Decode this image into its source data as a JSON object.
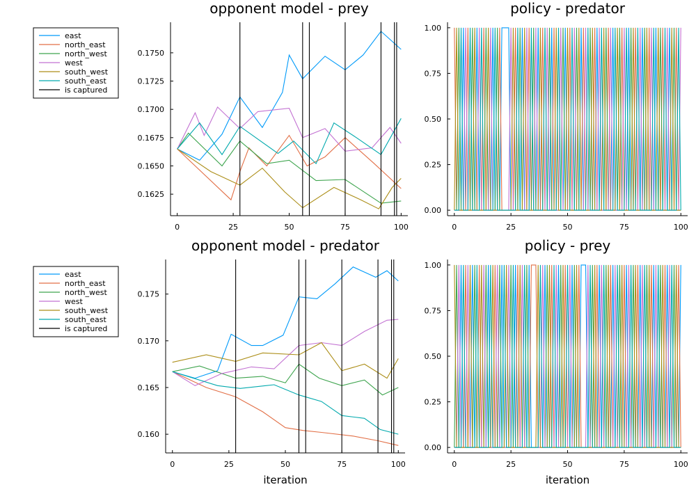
{
  "figure": {
    "captures_label": "is captured",
    "capture_iterations": [
      28,
      56,
      59,
      75,
      91,
      97,
      98
    ],
    "colors": {
      "east": "#009af9",
      "north_east": "#e26f46",
      "north_west": "#3da44d",
      "west": "#c271d2",
      "south_west": "#ac8e18",
      "south_east": "#00a9ad",
      "captured": "#000000"
    }
  },
  "chart_data": [
    {
      "id": "om_prey",
      "type": "line",
      "title": "opponent model - prey",
      "xlabel": "",
      "ylabel": "",
      "xlim": [
        -3,
        103
      ],
      "ylim": [
        0.1606,
        0.1777
      ],
      "x_ticks": [
        0,
        25,
        50,
        75,
        100
      ],
      "x_tick_labels": [
        "0",
        "25",
        "50",
        "75",
        "100"
      ],
      "y_ticks": [
        0.1625,
        0.165,
        0.1675,
        0.17,
        0.1725,
        0.175
      ],
      "y_tick_labels": [
        "0.1625",
        "0.1650",
        "0.1675",
        "0.1700",
        "0.1725",
        "0.1750"
      ],
      "legend": true,
      "legend_position": "outer-left",
      "series": [
        {
          "name": "east",
          "key": "east",
          "values": [
            [
              0,
              0.1665
            ],
            [
              10,
              0.1655
            ],
            [
              20,
              0.1678
            ],
            [
              28,
              0.1711
            ],
            [
              38,
              0.1684
            ],
            [
              47,
              0.1715
            ],
            [
              50,
              0.1748
            ],
            [
              56,
              0.1727
            ],
            [
              66,
              0.1747
            ],
            [
              75,
              0.1735
            ],
            [
              83,
              0.1748
            ],
            [
              91,
              0.1769
            ],
            [
              100,
              0.1753
            ]
          ]
        },
        {
          "name": "north_east",
          "key": "north_east",
          "values": [
            [
              0,
              0.1665
            ],
            [
              24,
              0.162
            ],
            [
              28,
              0.1645
            ],
            [
              32,
              0.1666
            ],
            [
              40,
              0.165
            ],
            [
              50,
              0.1677
            ],
            [
              58,
              0.165
            ],
            [
              66,
              0.1658
            ],
            [
              75,
              0.1675
            ],
            [
              88,
              0.1652
            ],
            [
              100,
              0.163
            ]
          ]
        },
        {
          "name": "north_west",
          "key": "north_west",
          "values": [
            [
              0,
              0.1665
            ],
            [
              5,
              0.1679
            ],
            [
              20,
              0.165
            ],
            [
              28,
              0.1672
            ],
            [
              40,
              0.1652
            ],
            [
              50,
              0.1655
            ],
            [
              62,
              0.1637
            ],
            [
              75,
              0.1638
            ],
            [
              91,
              0.1617
            ],
            [
              100,
              0.1619
            ]
          ]
        },
        {
          "name": "west",
          "key": "west",
          "values": [
            [
              0,
              0.1665
            ],
            [
              8,
              0.1697
            ],
            [
              12,
              0.1677
            ],
            [
              18,
              0.1702
            ],
            [
              28,
              0.1683
            ],
            [
              36,
              0.1698
            ],
            [
              50,
              0.1701
            ],
            [
              56,
              0.1675
            ],
            [
              66,
              0.1683
            ],
            [
              75,
              0.1663
            ],
            [
              87,
              0.1666
            ],
            [
              95,
              0.1684
            ],
            [
              100,
              0.167
            ]
          ]
        },
        {
          "name": "south_west",
          "key": "south_west",
          "values": [
            [
              0,
              0.1665
            ],
            [
              15,
              0.1645
            ],
            [
              28,
              0.1633
            ],
            [
              38,
              0.1648
            ],
            [
              48,
              0.1627
            ],
            [
              56,
              0.1613
            ],
            [
              70,
              0.1631
            ],
            [
              82,
              0.162
            ],
            [
              90,
              0.1612
            ],
            [
              96,
              0.1631
            ],
            [
              100,
              0.1639
            ]
          ]
        },
        {
          "name": "south_east",
          "key": "south_east",
          "values": [
            [
              0,
              0.1665
            ],
            [
              10,
              0.1688
            ],
            [
              20,
              0.166
            ],
            [
              28,
              0.1685
            ],
            [
              45,
              0.1661
            ],
            [
              52,
              0.1672
            ],
            [
              62,
              0.1652
            ],
            [
              70,
              0.1688
            ],
            [
              80,
              0.1675
            ],
            [
              91,
              0.166
            ],
            [
              100,
              0.1692
            ]
          ]
        }
      ]
    },
    {
      "id": "policy_predator",
      "type": "line",
      "title": "policy - predator",
      "xlabel": "",
      "ylabel": "",
      "xlim": [
        -3,
        103
      ],
      "ylim": [
        -0.03,
        1.03
      ],
      "x_ticks": [
        0,
        25,
        50,
        75,
        100
      ],
      "x_tick_labels": [
        "0",
        "25",
        "50",
        "75",
        "100"
      ],
      "y_ticks": [
        0,
        0.25,
        0.5,
        0.75,
        1
      ],
      "y_tick_labels": [
        "0.00",
        "0.25",
        "0.50",
        "0.75",
        "1.00"
      ],
      "legend": false,
      "series_rule": "one-hot; at each iteration exactly one action equals 1",
      "action_order": [
        "east",
        "north_east",
        "north_west",
        "west",
        "south_west",
        "south_east"
      ],
      "selected_action_by_iteration": [
        1,
        4,
        2,
        5,
        0,
        3,
        1,
        5,
        2,
        4,
        0,
        3,
        5,
        1,
        2,
        4,
        3,
        0,
        5,
        2,
        1,
        0,
        0,
        0,
        0,
        3,
        4,
        1,
        5,
        2,
        0,
        4,
        3,
        1,
        5,
        2,
        3,
        0,
        4,
        1,
        5,
        3,
        2,
        0,
        1,
        4,
        5,
        3,
        2,
        0,
        4,
        1,
        5,
        3,
        2,
        4,
        0,
        1,
        3,
        5,
        2,
        4,
        1,
        0,
        3,
        5,
        4,
        2,
        1,
        3,
        0,
        5,
        4,
        2,
        1,
        3,
        5,
        0,
        2,
        4,
        1,
        5,
        3,
        0,
        2,
        4,
        1,
        3,
        5,
        0,
        4,
        2,
        1,
        5,
        3,
        0,
        4,
        2,
        1,
        5,
        3
      ]
    },
    {
      "id": "om_predator",
      "type": "line",
      "title": "opponent model - predator",
      "xlabel": "iteration",
      "ylabel": "",
      "xlim": [
        -3,
        103
      ],
      "ylim": [
        0.158,
        0.1787
      ],
      "x_ticks": [
        0,
        25,
        50,
        75,
        100
      ],
      "x_tick_labels": [
        "0",
        "25",
        "50",
        "75",
        "100"
      ],
      "y_ticks": [
        0.16,
        0.165,
        0.17,
        0.175
      ],
      "y_tick_labels": [
        "0.160",
        "0.165",
        "0.170",
        "0.175"
      ],
      "legend": true,
      "legend_position": "outer-left",
      "series": [
        {
          "name": "east",
          "key": "east",
          "values": [
            [
              0,
              0.1667
            ],
            [
              10,
              0.166
            ],
            [
              20,
              0.1668
            ],
            [
              26,
              0.1707
            ],
            [
              35,
              0.1695
            ],
            [
              40,
              0.1695
            ],
            [
              49,
              0.1706
            ],
            [
              56,
              0.1747
            ],
            [
              64,
              0.1745
            ],
            [
              72,
              0.1761
            ],
            [
              80,
              0.1779
            ],
            [
              90,
              0.1768
            ],
            [
              95,
              0.1775
            ],
            [
              100,
              0.1764
            ]
          ]
        },
        {
          "name": "north_east",
          "key": "north_east",
          "values": [
            [
              0,
              0.1667
            ],
            [
              15,
              0.165
            ],
            [
              28,
              0.164
            ],
            [
              40,
              0.1624
            ],
            [
              50,
              0.1607
            ],
            [
              58,
              0.1604
            ],
            [
              66,
              0.1602
            ],
            [
              80,
              0.1598
            ],
            [
              91,
              0.1593
            ],
            [
              100,
              0.1588
            ]
          ]
        },
        {
          "name": "north_west",
          "key": "north_west",
          "values": [
            [
              0,
              0.1667
            ],
            [
              12,
              0.1673
            ],
            [
              28,
              0.166
            ],
            [
              40,
              0.1662
            ],
            [
              50,
              0.1655
            ],
            [
              56,
              0.1675
            ],
            [
              65,
              0.166
            ],
            [
              75,
              0.1652
            ],
            [
              85,
              0.1658
            ],
            [
              93,
              0.1642
            ],
            [
              100,
              0.165
            ]
          ]
        },
        {
          "name": "west",
          "key": "west",
          "values": [
            [
              0,
              0.1667
            ],
            [
              10,
              0.1652
            ],
            [
              22,
              0.1665
            ],
            [
              35,
              0.1672
            ],
            [
              45,
              0.167
            ],
            [
              56,
              0.1695
            ],
            [
              66,
              0.1698
            ],
            [
              75,
              0.1695
            ],
            [
              85,
              0.171
            ],
            [
              95,
              0.1722
            ],
            [
              100,
              0.1723
            ]
          ]
        },
        {
          "name": "south_west",
          "key": "south_west",
          "values": [
            [
              0,
              0.1677
            ],
            [
              15,
              0.1685
            ],
            [
              28,
              0.1678
            ],
            [
              40,
              0.1687
            ],
            [
              56,
              0.1685
            ],
            [
              66,
              0.1698
            ],
            [
              75,
              0.1668
            ],
            [
              85,
              0.1675
            ],
            [
              95,
              0.166
            ],
            [
              100,
              0.1681
            ]
          ]
        },
        {
          "name": "south_east",
          "key": "south_east",
          "values": [
            [
              0,
              0.1667
            ],
            [
              20,
              0.1652
            ],
            [
              30,
              0.1649
            ],
            [
              45,
              0.1653
            ],
            [
              56,
              0.1642
            ],
            [
              66,
              0.1635
            ],
            [
              75,
              0.162
            ],
            [
              85,
              0.1617
            ],
            [
              92,
              0.1605
            ],
            [
              100,
              0.16
            ]
          ]
        }
      ]
    },
    {
      "id": "policy_prey",
      "type": "line",
      "title": "policy - prey",
      "xlabel": "iteration",
      "ylabel": "",
      "xlim": [
        -3,
        103
      ],
      "ylim": [
        -0.03,
        1.03
      ],
      "x_ticks": [
        0,
        25,
        50,
        75,
        100
      ],
      "x_tick_labels": [
        "0",
        "25",
        "50",
        "75",
        "100"
      ],
      "y_ticks": [
        0,
        0.25,
        0.5,
        0.75,
        1
      ],
      "y_tick_labels": [
        "0.00",
        "0.25",
        "0.50",
        "0.75",
        "1.00"
      ],
      "legend": false,
      "series_rule": "one-hot; at each iteration exactly one action equals 1",
      "action_order": [
        "east",
        "north_east",
        "north_west",
        "west",
        "south_west",
        "south_east"
      ],
      "selected_action_by_iteration": [
        4,
        2,
        3,
        0,
        5,
        1,
        3,
        4,
        0,
        2,
        5,
        1,
        4,
        3,
        2,
        0,
        5,
        4,
        1,
        3,
        2,
        0,
        5,
        4,
        3,
        2,
        5,
        0,
        1,
        4,
        3,
        5,
        2,
        0,
        1,
        1,
        1,
        4,
        5,
        3,
        0,
        2,
        4,
        1,
        5,
        3,
        0,
        2,
        4,
        1,
        5,
        3,
        0,
        2,
        4,
        1,
        0,
        0,
        0,
        3,
        5,
        2,
        4,
        1,
        0,
        3,
        5,
        2,
        4,
        1,
        0,
        3,
        5,
        2,
        4,
        1,
        0,
        3,
        5,
        2,
        4,
        1,
        0,
        3,
        5,
        2,
        4,
        1,
        0,
        3,
        5,
        2,
        4,
        1,
        0,
        3,
        5,
        2,
        4,
        1,
        0
      ]
    }
  ]
}
